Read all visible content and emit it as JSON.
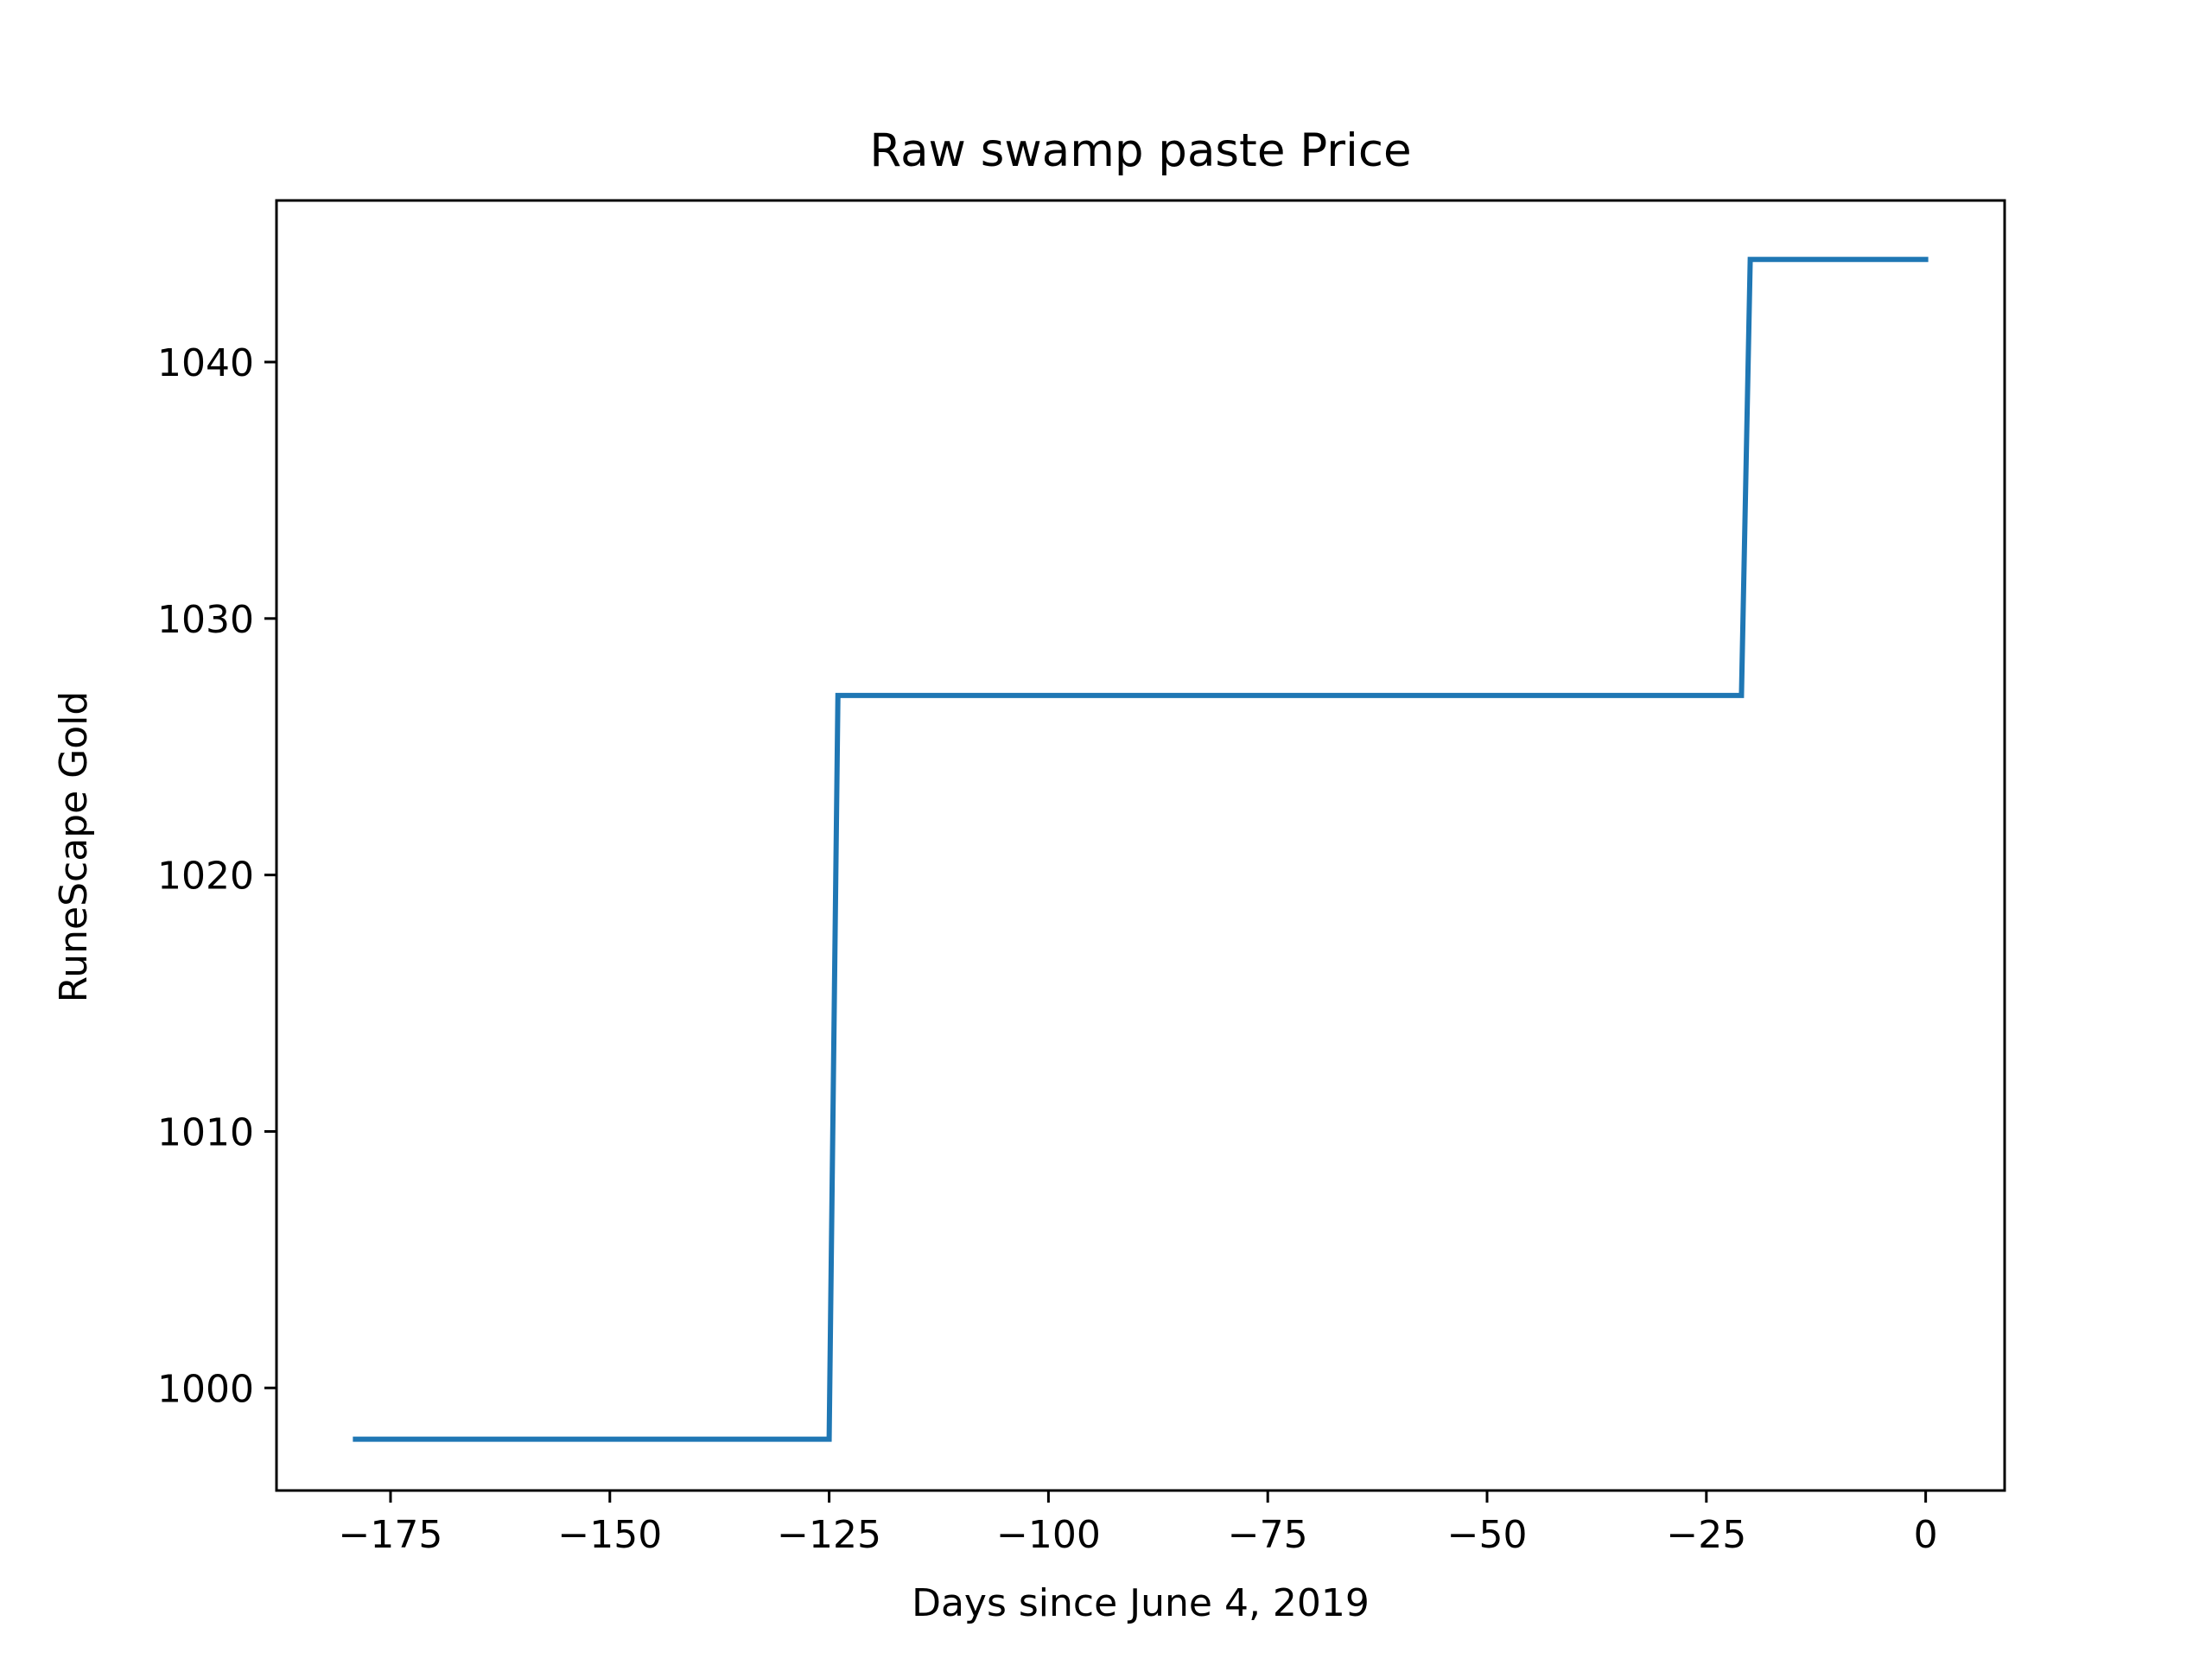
{
  "chart_data": {
    "type": "line",
    "title": "Raw swamp paste Price",
    "xlabel": "Days since June 4, 2019",
    "ylabel": "RuneScape Gold",
    "xlim": [
      -188,
      9
    ],
    "ylim": [
      996,
      1046.3
    ],
    "x_ticks": [
      -175,
      -150,
      -125,
      -100,
      -75,
      -50,
      -25,
      0
    ],
    "x_tick_labels": [
      "−175",
      "−150",
      "−125",
      "−100",
      "−75",
      "−50",
      "−25",
      "0"
    ],
    "y_ticks": [
      1000,
      1010,
      1020,
      1030,
      1040
    ],
    "y_tick_labels": [
      "1000",
      "1010",
      "1020",
      "1030",
      "1040"
    ],
    "grid": false,
    "colors": {
      "series": "#1f77b4",
      "axes": "#000000",
      "background": "#ffffff"
    },
    "series": [
      {
        "x": [
          -179,
          -125,
          -124,
          -21,
          -20,
          0
        ],
        "y": [
          998,
          998,
          1027,
          1027,
          1044,
          1044
        ]
      }
    ]
  }
}
